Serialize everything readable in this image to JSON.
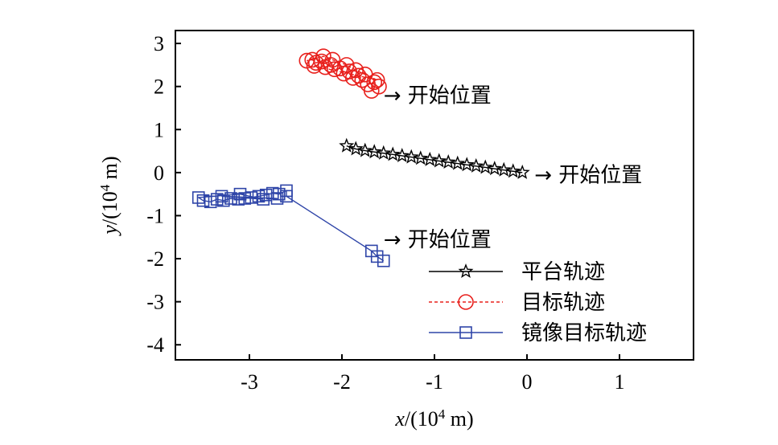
{
  "chart_data": {
    "type": "scatter",
    "title": "",
    "xlabel": {
      "var": "x",
      "rest": "/(10",
      "exp": "4",
      "unit": " m)"
    },
    "ylabel": {
      "var": "y",
      "rest": "/(10",
      "exp": "4",
      "unit": " m)"
    },
    "xlim": [
      -3.8,
      1.8
    ],
    "ylim": [
      -4.35,
      3.3
    ],
    "xticks": [
      {
        "value": -3,
        "label": "-3"
      },
      {
        "value": -2,
        "label": "-2"
      },
      {
        "value": -1,
        "label": "-1"
      },
      {
        "value": 0,
        "label": "0"
      },
      {
        "value": 1,
        "label": "1"
      }
    ],
    "yticks": [
      {
        "value": 3,
        "label": "3"
      },
      {
        "value": 2,
        "label": "2"
      },
      {
        "value": 1,
        "label": "1"
      },
      {
        "value": 0,
        "label": "0"
      },
      {
        "value": -1,
        "label": "-1"
      },
      {
        "value": -2,
        "label": "-2"
      },
      {
        "value": -3,
        "label": "-3"
      },
      {
        "value": -4,
        "label": "-4"
      }
    ],
    "grid": false,
    "legend_position": "bottom-right",
    "series": [
      {
        "name": "平台轨迹",
        "marker": "star",
        "line": "solid",
        "color": "#000000",
        "points": [
          {
            "x": -0.05,
            "y": 0.0
          },
          {
            "x": -0.15,
            "y": 0.03
          },
          {
            "x": -0.25,
            "y": 0.06
          },
          {
            "x": -0.35,
            "y": 0.09
          },
          {
            "x": -0.45,
            "y": 0.12
          },
          {
            "x": -0.55,
            "y": 0.15
          },
          {
            "x": -0.65,
            "y": 0.18
          },
          {
            "x": -0.75,
            "y": 0.21
          },
          {
            "x": -0.85,
            "y": 0.24
          },
          {
            "x": -0.95,
            "y": 0.27
          },
          {
            "x": -1.05,
            "y": 0.3
          },
          {
            "x": -1.15,
            "y": 0.33
          },
          {
            "x": -1.25,
            "y": 0.36
          },
          {
            "x": -1.35,
            "y": 0.39
          },
          {
            "x": -1.45,
            "y": 0.42
          },
          {
            "x": -1.55,
            "y": 0.45
          },
          {
            "x": -1.65,
            "y": 0.48
          },
          {
            "x": -1.75,
            "y": 0.51
          },
          {
            "x": -1.85,
            "y": 0.55
          },
          {
            "x": -1.95,
            "y": 0.62
          }
        ]
      },
      {
        "name": "目标轨迹",
        "marker": "circle",
        "line": "dashed",
        "color": "#e8201c",
        "points": [
          {
            "x": -1.6,
            "y": 2.0
          },
          {
            "x": -1.68,
            "y": 1.9
          },
          {
            "x": -1.65,
            "y": 2.1
          },
          {
            "x": -1.72,
            "y": 2.05
          },
          {
            "x": -1.78,
            "y": 2.15
          },
          {
            "x": -1.82,
            "y": 2.25
          },
          {
            "x": -1.88,
            "y": 2.2
          },
          {
            "x": -1.92,
            "y": 2.35
          },
          {
            "x": -1.98,
            "y": 2.3
          },
          {
            "x": -2.02,
            "y": 2.42
          },
          {
            "x": -2.08,
            "y": 2.4
          },
          {
            "x": -2.12,
            "y": 2.5
          },
          {
            "x": -2.18,
            "y": 2.45
          },
          {
            "x": -2.22,
            "y": 2.58
          },
          {
            "x": -2.28,
            "y": 2.55
          },
          {
            "x": -2.32,
            "y": 2.62
          },
          {
            "x": -2.38,
            "y": 2.6
          },
          {
            "x": -2.2,
            "y": 2.7
          },
          {
            "x": -2.1,
            "y": 2.62
          },
          {
            "x": -1.95,
            "y": 2.5
          },
          {
            "x": -1.85,
            "y": 2.38
          },
          {
            "x": -1.75,
            "y": 2.28
          },
          {
            "x": -1.62,
            "y": 2.15
          },
          {
            "x": -2.3,
            "y": 2.48
          }
        ]
      },
      {
        "name": "镜像目标轨迹",
        "marker": "square",
        "line": "solid",
        "color": "#2f45a8",
        "points": [
          {
            "x": -1.55,
            "y": -2.05
          },
          {
            "x": -1.62,
            "y": -1.95
          },
          {
            "x": -1.68,
            "y": -1.82
          },
          {
            "x": -2.6,
            "y": -0.55
          },
          {
            "x": -2.6,
            "y": -0.42
          },
          {
            "x": -2.68,
            "y": -0.5
          },
          {
            "x": -2.75,
            "y": -0.48
          },
          {
            "x": -2.82,
            "y": -0.52
          },
          {
            "x": -2.9,
            "y": -0.55
          },
          {
            "x": -2.98,
            "y": -0.58
          },
          {
            "x": -3.05,
            "y": -0.6
          },
          {
            "x": -3.12,
            "y": -0.62
          },
          {
            "x": -3.2,
            "y": -0.6
          },
          {
            "x": -3.28,
            "y": -0.65
          },
          {
            "x": -3.35,
            "y": -0.62
          },
          {
            "x": -3.42,
            "y": -0.68
          },
          {
            "x": -3.5,
            "y": -0.65
          },
          {
            "x": -3.55,
            "y": -0.58
          },
          {
            "x": -3.1,
            "y": -0.5
          },
          {
            "x": -2.85,
            "y": -0.62
          },
          {
            "x": -3.3,
            "y": -0.55
          },
          {
            "x": -2.7,
            "y": -0.6
          }
        ]
      }
    ],
    "annotations": [
      {
        "text": "→ 开始位置",
        "anchor": {
          "x": -1.55,
          "y": 1.8
        }
      },
      {
        "text": "→ 开始位置",
        "anchor": {
          "x": 0.08,
          "y": -0.05
        }
      },
      {
        "text": "→ 开始位置",
        "anchor": {
          "x": -1.55,
          "y": -1.55
        }
      }
    ]
  }
}
